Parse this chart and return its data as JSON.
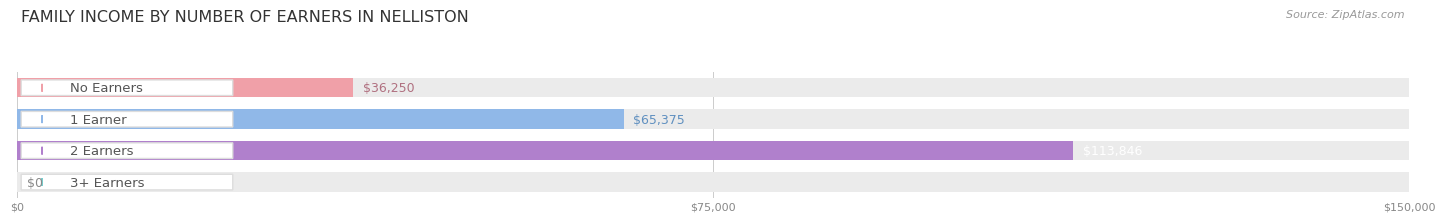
{
  "title": "FAMILY INCOME BY NUMBER OF EARNERS IN NELLISTON",
  "source": "Source: ZipAtlas.com",
  "categories": [
    "No Earners",
    "1 Earner",
    "2 Earners",
    "3+ Earners"
  ],
  "values": [
    36250,
    65375,
    113846,
    0
  ],
  "bar_colors": [
    "#f0a0a8",
    "#90b8e8",
    "#b080cc",
    "#78cece"
  ],
  "bg_bar_color": "#ebebeb",
  "value_label_colors": [
    "#b07080",
    "#6090c0",
    "#ffffff",
    "#888888"
  ],
  "max_value": 150000,
  "tick_values": [
    0,
    75000,
    150000
  ],
  "tick_labels": [
    "$0",
    "$75,000",
    "$150,000"
  ],
  "value_labels": [
    "$36,250",
    "$65,375",
    "$113,846",
    "$0"
  ],
  "title_fontsize": 11.5,
  "label_fontsize": 9.5,
  "value_fontsize": 9,
  "source_fontsize": 8,
  "background_color": "#ffffff",
  "pill_color": "#ffffff",
  "pill_edge_color": "#dddddd"
}
